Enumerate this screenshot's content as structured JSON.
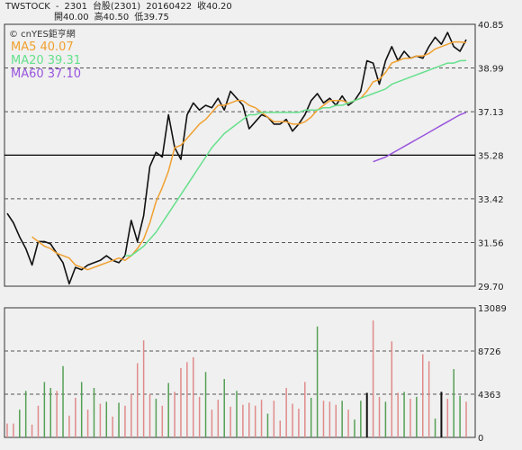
{
  "header": {
    "symbol": "TWSTOCK",
    "dash": "-",
    "code": "2301",
    "market_name": "台股(2301)",
    "date": "20160422",
    "close_label": "收40.20",
    "open_label": "開40.00",
    "high_label": "高40.50",
    "low_label": "低39.75"
  },
  "watermark": "© cnYES鉅亨網",
  "colors": {
    "background": "#f0f0f0",
    "price_line": "#111111",
    "ma5": "#f0a030",
    "ma20": "#66e08c",
    "ma60": "#9955dd",
    "volume_up": "#e08a8a",
    "volume_down": "#55a055",
    "volume_highlight": "#111111",
    "grid_dashed": "#555555"
  },
  "chart_data": [
    {
      "type": "line",
      "name": "price",
      "legend": [
        {
          "label": "MA5 40.07",
          "color_key": "ma5"
        },
        {
          "label": "MA20 39.31",
          "color_key": "ma20"
        },
        {
          "label": "MA60 37.10",
          "color_key": "ma60"
        }
      ],
      "y_ticks": [
        "40.85",
        "38.99",
        "37.13",
        "35.28",
        "33.42",
        "31.56",
        "29.70"
      ],
      "ylim": [
        29.7,
        40.85
      ],
      "solid_line_at": 35.28,
      "grid": "dashed",
      "series": [
        {
          "key": "close",
          "color_key": "price_line",
          "values": [
            32.8,
            32.4,
            31.8,
            31.3,
            30.6,
            31.6,
            31.6,
            31.5,
            31.1,
            30.7,
            29.8,
            30.5,
            30.4,
            30.6,
            30.7,
            30.8,
            31.0,
            30.8,
            30.7,
            31.0,
            32.5,
            31.6,
            32.7,
            34.8,
            35.4,
            35.2,
            37.0,
            35.6,
            35.1,
            37.0,
            37.5,
            37.2,
            37.4,
            37.3,
            37.7,
            37.2,
            38.0,
            37.7,
            37.4,
            36.4,
            36.7,
            37.0,
            36.9,
            36.6,
            36.6,
            36.8,
            36.3,
            36.6,
            37.0,
            37.6,
            37.9,
            37.5,
            37.7,
            37.4,
            37.8,
            37.4,
            37.6,
            38.0,
            39.3,
            39.2,
            38.3,
            39.3,
            39.9,
            39.3,
            39.7,
            39.4,
            39.5,
            39.4,
            39.9,
            40.3,
            40.0,
            40.5,
            39.9,
            39.7,
            40.2
          ]
        },
        {
          "key": "ma5",
          "color_key": "ma5",
          "values": [
            null,
            null,
            null,
            null,
            31.8,
            31.6,
            31.4,
            31.3,
            31.1,
            31.0,
            30.9,
            30.6,
            30.5,
            30.4,
            30.5,
            30.6,
            30.7,
            30.8,
            30.9,
            30.8,
            31.0,
            31.3,
            31.7,
            32.4,
            33.3,
            33.9,
            34.6,
            35.6,
            35.7,
            36.0,
            36.3,
            36.6,
            36.8,
            37.1,
            37.4,
            37.4,
            37.5,
            37.6,
            37.6,
            37.4,
            37.3,
            37.1,
            36.9,
            36.7,
            36.7,
            36.7,
            36.6,
            36.6,
            36.7,
            36.9,
            37.2,
            37.4,
            37.6,
            37.6,
            37.6,
            37.5,
            37.6,
            37.7,
            38.0,
            38.4,
            38.5,
            38.8,
            39.2,
            39.3,
            39.4,
            39.4,
            39.5,
            39.5,
            39.6,
            39.8,
            39.9,
            40.0,
            40.1,
            40.1,
            40.07
          ]
        },
        {
          "key": "ma20",
          "color_key": "ma20",
          "values": [
            null,
            null,
            null,
            null,
            null,
            null,
            null,
            null,
            null,
            null,
            null,
            null,
            null,
            null,
            null,
            null,
            null,
            null,
            null,
            31.0,
            31.0,
            31.2,
            31.4,
            31.7,
            32.0,
            32.4,
            32.8,
            33.2,
            33.6,
            34.0,
            34.4,
            34.8,
            35.2,
            35.6,
            35.9,
            36.2,
            36.4,
            36.6,
            36.8,
            37.0,
            37.0,
            37.1,
            37.1,
            37.1,
            37.1,
            37.1,
            37.1,
            37.1,
            37.2,
            37.2,
            37.2,
            37.3,
            37.3,
            37.4,
            37.4,
            37.5,
            37.6,
            37.7,
            37.8,
            37.9,
            38.0,
            38.1,
            38.3,
            38.4,
            38.5,
            38.6,
            38.7,
            38.8,
            38.9,
            39.0,
            39.1,
            39.2,
            39.2,
            39.3,
            39.31
          ]
        },
        {
          "key": "ma60",
          "color_key": "ma60",
          "values": [
            null,
            null,
            null,
            null,
            null,
            null,
            null,
            null,
            null,
            null,
            null,
            null,
            null,
            null,
            null,
            null,
            null,
            null,
            null,
            null,
            null,
            null,
            null,
            null,
            null,
            null,
            null,
            null,
            null,
            null,
            null,
            null,
            null,
            null,
            null,
            null,
            null,
            null,
            null,
            null,
            null,
            null,
            null,
            null,
            null,
            null,
            null,
            null,
            null,
            null,
            null,
            null,
            null,
            null,
            null,
            null,
            null,
            null,
            null,
            35.0,
            35.1,
            35.2,
            35.35,
            35.5,
            35.65,
            35.8,
            35.95,
            36.1,
            36.25,
            36.4,
            36.55,
            36.7,
            36.85,
            37.0,
            37.1
          ]
        }
      ]
    },
    {
      "type": "bar",
      "name": "volume",
      "y_ticks": [
        "13089",
        "8726",
        "4363",
        "0"
      ],
      "ylim": [
        0,
        13089
      ],
      "grid": "dashed",
      "values": [
        1400,
        1400,
        2800,
        4700,
        1300,
        3200,
        5600,
        5000,
        4700,
        7200,
        2200,
        4000,
        5600,
        2800,
        5000,
        3400,
        3600,
        2100,
        3500,
        3200,
        4400,
        7500,
        9800,
        4400,
        3900,
        3200,
        5500,
        4600,
        7000,
        7600,
        8100,
        4100,
        6600,
        2800,
        3800,
        5900,
        3100,
        4700,
        3300,
        3500,
        3200,
        3800,
        2400,
        3700,
        1700,
        5000,
        3400,
        2900,
        5600,
        4000,
        11200,
        3700,
        3600,
        3300,
        3700,
        2800,
        1800,
        3700,
        4500,
        11800,
        4100,
        3600,
        9700,
        4500,
        4600,
        3900,
        4100,
        8400,
        7700,
        1900,
        4600,
        3900,
        6900,
        4200,
        3600
      ],
      "direction": [
        "up",
        "up",
        "down",
        "down",
        "up",
        "up",
        "down",
        "down",
        "up",
        "down",
        "up",
        "up",
        "down",
        "up",
        "down",
        "up",
        "down",
        "up",
        "down",
        "up",
        "up",
        "up",
        "up",
        "up",
        "down",
        "up",
        "down",
        "up",
        "up",
        "up",
        "up",
        "up",
        "down",
        "up",
        "up",
        "down",
        "up",
        "down",
        "up",
        "up",
        "up",
        "up",
        "down",
        "up",
        "up",
        "up",
        "up",
        "up",
        "up",
        "down",
        "down",
        "up",
        "up",
        "up",
        "down",
        "up",
        "down",
        "down",
        "highlight",
        "up",
        "up",
        "down",
        "up",
        "up",
        "down",
        "up",
        "down",
        "up",
        "up",
        "down",
        "highlight",
        "up",
        "down",
        "down",
        "up"
      ]
    }
  ]
}
